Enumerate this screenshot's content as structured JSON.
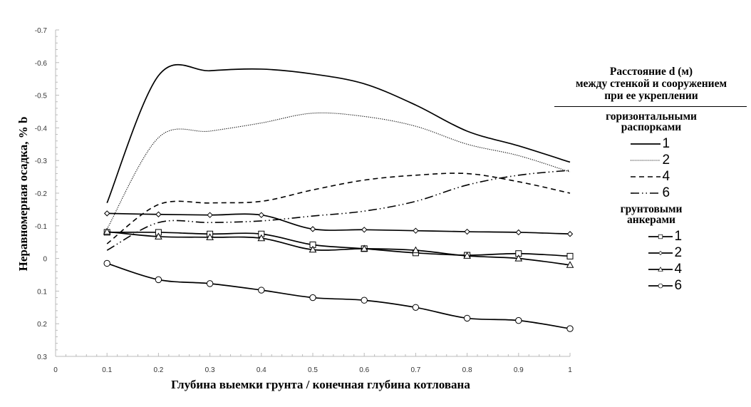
{
  "chart_data": {
    "type": "line",
    "title": "",
    "xlabel": "Глубина выемки грунта / конечная глубина котлована",
    "ylabel": "Неравномерная осадка, % b",
    "xlim": [
      0,
      1
    ],
    "ylim": [
      0.3,
      -0.7
    ],
    "x_ticks": [
      "0",
      "0.1",
      "0.2",
      "0.3",
      "0.4",
      "0.5",
      "0.6",
      "0.7",
      "0.8",
      "0.9",
      "1"
    ],
    "y_ticks": [
      "-0.7",
      "-0.6",
      "-0.5",
      "-0.4",
      "-0.3",
      "-0.2",
      "-0.1",
      "0",
      "0.1",
      "0.2",
      "0.3"
    ],
    "x": [
      0.1,
      0.2,
      0.3,
      0.4,
      0.5,
      0.6,
      0.7,
      0.8,
      0.9,
      1.0
    ],
    "legend": {
      "title": [
        "Расстояние d (м)",
        "между стенкой и сооружением",
        "при ее укреплении"
      ],
      "groups": [
        {
          "label": [
            "горизонтальными",
            "распорками"
          ]
        },
        {
          "label": [
            "грунтовыми",
            "анкерами"
          ]
        }
      ],
      "placement": "right"
    },
    "series": [
      {
        "name": "1",
        "group": 0,
        "style": "solid",
        "marker": "none",
        "values": [
          -0.17,
          -0.56,
          -0.575,
          -0.58,
          -0.565,
          -0.535,
          -0.47,
          -0.39,
          -0.345,
          -0.295
        ]
      },
      {
        "name": "2",
        "group": 0,
        "style": "dotted",
        "marker": "none",
        "values": [
          -0.09,
          -0.37,
          -0.39,
          -0.415,
          -0.445,
          -0.435,
          -0.405,
          -0.35,
          -0.315,
          -0.265
        ]
      },
      {
        "name": "4",
        "group": 0,
        "style": "dashed",
        "marker": "none",
        "values": [
          -0.045,
          -0.165,
          -0.17,
          -0.175,
          -0.21,
          -0.24,
          -0.255,
          -0.26,
          -0.235,
          -0.2
        ]
      },
      {
        "name": "6",
        "group": 0,
        "style": "dashdot",
        "marker": "none",
        "values": [
          -0.025,
          -0.11,
          -0.11,
          -0.115,
          -0.13,
          -0.145,
          -0.175,
          -0.225,
          -0.255,
          -0.27
        ]
      },
      {
        "name": "1",
        "group": 1,
        "style": "solid",
        "marker": "square",
        "values": [
          -0.08,
          -0.08,
          -0.075,
          -0.075,
          -0.042,
          -0.03,
          -0.017,
          -0.01,
          -0.015,
          -0.007
        ]
      },
      {
        "name": "2",
        "group": 1,
        "style": "solid",
        "marker": "diamond",
        "values": [
          -0.138,
          -0.135,
          -0.133,
          -0.133,
          -0.09,
          -0.088,
          -0.085,
          -0.082,
          -0.08,
          -0.075
        ]
      },
      {
        "name": "4",
        "group": 1,
        "style": "solid",
        "marker": "triangle",
        "values": [
          -0.082,
          -0.067,
          -0.065,
          -0.062,
          -0.027,
          -0.03,
          -0.025,
          -0.008,
          0.0,
          0.02
        ]
      },
      {
        "name": "6",
        "group": 1,
        "style": "solid",
        "marker": "circle",
        "values": [
          0.015,
          0.065,
          0.077,
          0.097,
          0.12,
          0.128,
          0.15,
          0.183,
          0.19,
          0.215
        ]
      }
    ]
  }
}
